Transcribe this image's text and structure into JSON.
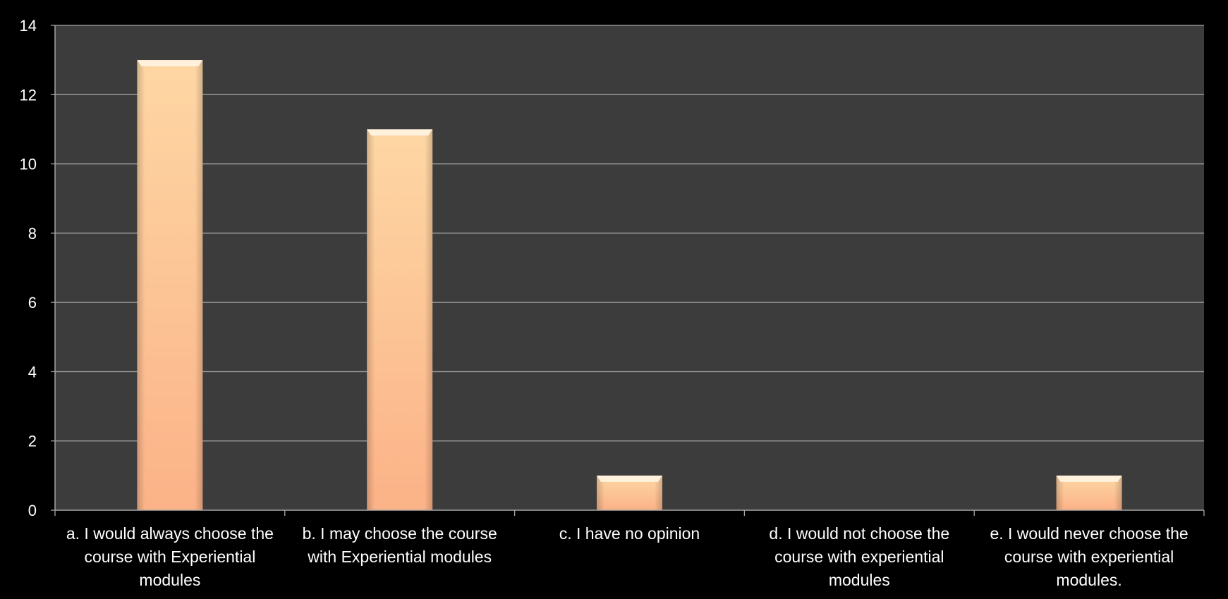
{
  "chart_data": {
    "type": "bar",
    "categories": [
      "a. I would always choose the course with Experiential modules",
      "b. I may choose the course with Experiential modules",
      "c. I have no opinion",
      "d. I would not choose the course with experiential modules",
      "e. I would never choose the course with experiential modules."
    ],
    "category_lines": [
      [
        "a. I would always choose the",
        "course with Experiential",
        "modules"
      ],
      [
        "b. I may choose the course",
        "with Experiential modules"
      ],
      [
        "c. I have no opinion"
      ],
      [
        "d. I would not choose the",
        "course with experiential",
        "modules"
      ],
      [
        "e. I would never choose the",
        "course with experiential",
        "modules."
      ]
    ],
    "values": [
      13,
      11,
      1,
      0,
      1
    ],
    "ylim": [
      0,
      14
    ],
    "yticks": [
      "0",
      "2",
      "4",
      "6",
      "8",
      "10",
      "12",
      "14"
    ],
    "title": "",
    "xlabel": "",
    "ylabel": "",
    "grid": true,
    "legend": "none",
    "colors": {
      "page_background": "#000000",
      "plot_background": "#3c3c3c",
      "gridline": "#a6a6a6",
      "axis": "#a6a6a6",
      "bar_top": "#fed7a4",
      "bar_bottom": "#fbb287",
      "bar_cap": "#fff1dc",
      "text": "#ffffff"
    }
  }
}
